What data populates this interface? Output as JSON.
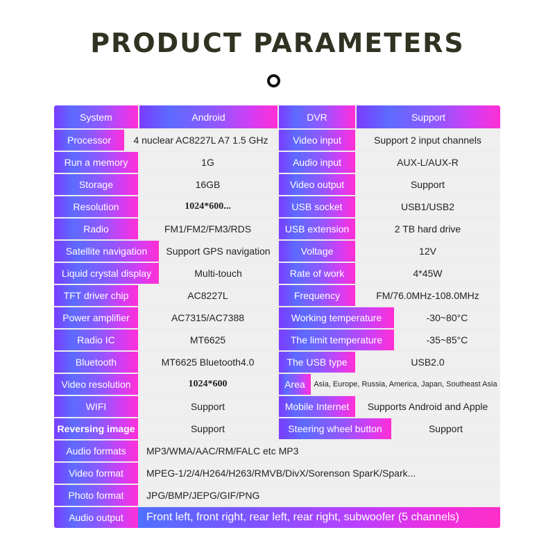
{
  "title": "PRODUCT PARAMETERS",
  "rows": [
    {
      "l": "System",
      "lv": "Android",
      "r": "DVR",
      "rv": "Support"
    },
    {
      "l": "Processor",
      "lv": "4 nuclear   AC8227L A7 1.5 GHz",
      "r": "Video input",
      "rv": "Support 2 input channels"
    },
    {
      "l": "Run a memory",
      "lv": "1G",
      "r": "Audio input",
      "rv": "AUX-L/AUX-R"
    },
    {
      "l": "Storage",
      "lv": "16GB",
      "r": "Video output",
      "rv": "Support"
    },
    {
      "l": "Resolution",
      "lv": "1024*600...",
      "r": "USB socket",
      "rv": "USB1/USB2"
    },
    {
      "l": "Radio",
      "lv": "FM1/FM2/FM3/RDS",
      "r": "USB extension",
      "rv": "2 TB hard drive"
    },
    {
      "l": "Satellite navigation",
      "lv": "Support GPS navigation",
      "r": "Voltage",
      "rv": "12V"
    },
    {
      "l": "Liquid crystal display",
      "lv": "Multi-touch",
      "r": "Rate of work",
      "rv": "4*45W"
    },
    {
      "l": "TFT driver chip",
      "lv": "AC8227L",
      "r": "Frequency",
      "rv": "FM/76.0MHz-108.0MHz"
    },
    {
      "l": "Power amplifier",
      "lv": "AC7315/AC7388",
      "r": "Working temperature",
      "rv": "-30~80°C"
    },
    {
      "l": "Radio IC",
      "lv": "MT6625",
      "r": "The limit temperature",
      "rv": "-35~85°C"
    },
    {
      "l": "Bluetooth",
      "lv": "MT6625 Bluetooth4.0",
      "r": "The USB type",
      "rv": "USB2.0"
    },
    {
      "l": "Video resolution",
      "lv": "1024*600",
      "r": "Area",
      "rv": "Asia, Europe, Russia, America, Japan, Southeast Asia"
    },
    {
      "l": "WIFI",
      "lv": "Support",
      "r": "Mobile Internet",
      "rv": "Supports Android and Apple"
    },
    {
      "l": "Reversing image",
      "lv": "Support",
      "r": "Steering wheel button",
      "rv": "Support"
    }
  ],
  "full_rows": [
    {
      "l": "Audio formats",
      "v": "MP3/WMA/AAC/RM/FALC etc MP3"
    },
    {
      "l": "Video format",
      "v": "MPEG-1/2/4/H264/H263/RMVB/DivX/Sorenson SparK/Spark..."
    },
    {
      "l": "Photo format",
      "v": "JPG/BMP/JEPG/GIF/PNG"
    },
    {
      "l": "Audio output",
      "v": "Front left, front right, rear left, rear right, subwoofer (5 channels)"
    }
  ]
}
